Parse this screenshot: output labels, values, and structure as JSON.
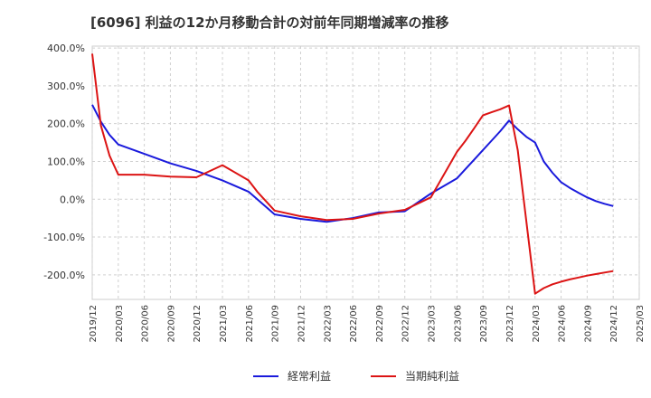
{
  "chart_data": {
    "type": "line",
    "title": "[6096]  利益の12か月移動合計の対前年同期増減率の推移",
    "xlabel": "",
    "ylabel": "",
    "ylim": [
      -265,
      405
    ],
    "yticks": [
      400,
      300,
      200,
      100,
      0,
      -100,
      -200
    ],
    "ytick_labels": [
      "400.0%",
      "300.0%",
      "200.0%",
      "100.0%",
      "0.0%",
      "-100.0%",
      "-200.0%"
    ],
    "xtick_labels": [
      "2019/12",
      "2020/03",
      "2020/06",
      "2020/09",
      "2020/12",
      "2021/03",
      "2021/06",
      "2021/09",
      "2021/12",
      "2022/03",
      "2022/06",
      "2022/09",
      "2022/12",
      "2023/03",
      "2023/06",
      "2023/09",
      "2023/12",
      "2024/03",
      "2024/06",
      "2024/09",
      "2024/12",
      "2025/03"
    ],
    "x": [
      "2019/12",
      "2020/01",
      "2020/02",
      "2020/03",
      "2020/06",
      "2020/09",
      "2020/12",
      "2021/03",
      "2021/06",
      "2021/07",
      "2021/09",
      "2021/12",
      "2022/03",
      "2022/06",
      "2022/09",
      "2022/12",
      "2023/03",
      "2023/06",
      "2023/07",
      "2023/08",
      "2023/09",
      "2023/10",
      "2023/11",
      "2023/12",
      "2024/01",
      "2024/02",
      "2024/03",
      "2024/04",
      "2024/05",
      "2024/06",
      "2024/07",
      "2024/08",
      "2024/09",
      "2024/10",
      "2024/11",
      "2024/12"
    ],
    "series": [
      {
        "name": "経常利益",
        "color": "#1a1adc",
        "values": [
          250,
          205,
          170,
          145,
          120,
          95,
          75,
          50,
          20,
          0,
          -40,
          -52,
          -60,
          -50,
          -35,
          -32,
          15,
          55,
          80,
          105,
          130,
          155,
          180,
          208,
          185,
          165,
          150,
          100,
          70,
          45,
          30,
          17,
          5,
          -5,
          -12,
          -18
        ]
      },
      {
        "name": "当期純利益",
        "color": "#dc1414",
        "values": [
          385,
          195,
          115,
          65,
          65,
          60,
          58,
          90,
          50,
          20,
          -30,
          -45,
          -55,
          -52,
          -38,
          -28,
          5,
          125,
          155,
          188,
          222,
          230,
          238,
          248,
          130,
          -60,
          -250,
          -235,
          -225,
          -218,
          -212,
          -207,
          -202,
          -198,
          -194,
          -190
        ]
      }
    ],
    "legend": {
      "position": "bottom-center",
      "entries": [
        "経常利益",
        "当期純利益"
      ]
    },
    "grid": true
  }
}
